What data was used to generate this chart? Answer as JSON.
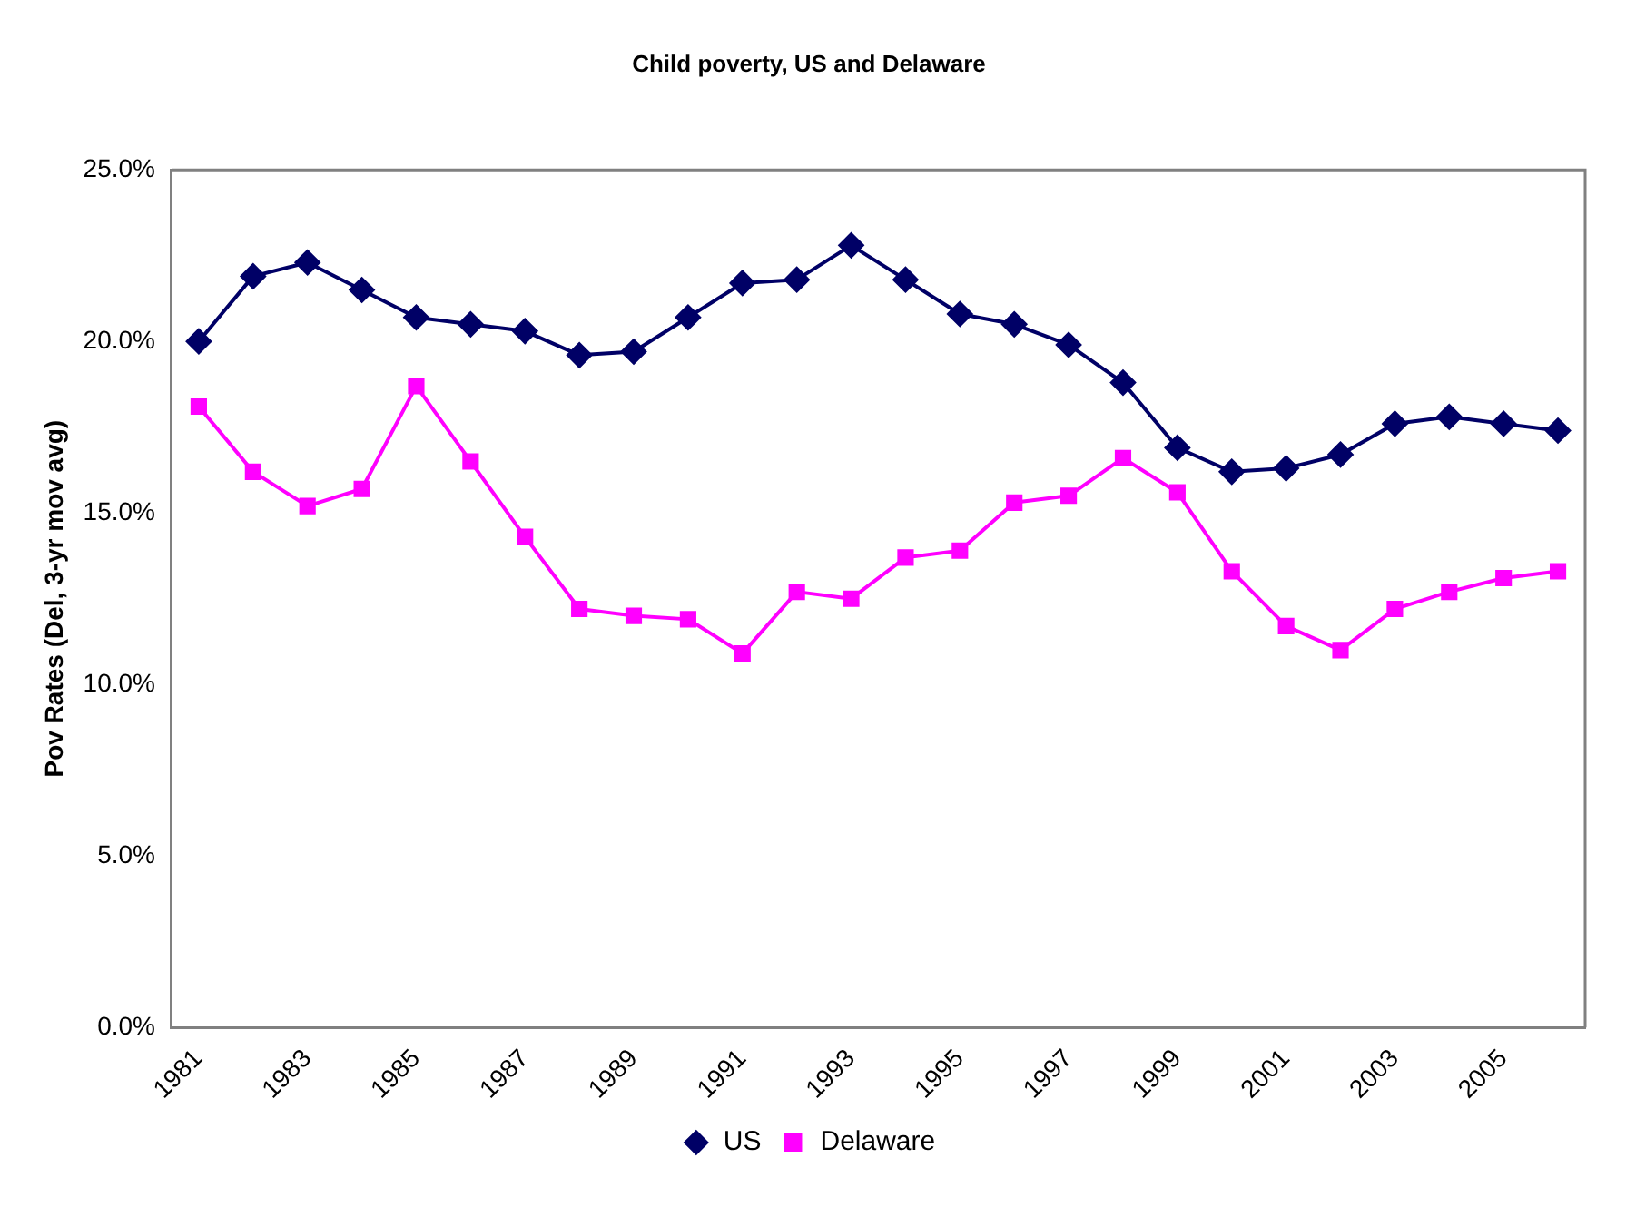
{
  "chart_data": {
    "type": "line",
    "title": "Child poverty, US and Delaware",
    "ylabel": "Pov Rates (Del, 3-yr mov avg)",
    "categories": [
      "1981",
      null,
      "1983",
      null,
      "1985",
      null,
      "1987",
      null,
      "1989",
      null,
      "1991",
      null,
      "1993",
      null,
      "1995",
      null,
      "1997",
      null,
      "1999",
      null,
      "2001",
      null,
      "2003",
      null,
      "2005",
      null
    ],
    "series": [
      {
        "name": "US",
        "color": "#000066",
        "marker": "diamond",
        "values": [
          20.0,
          21.9,
          22.3,
          21.5,
          20.7,
          20.5,
          20.3,
          19.6,
          19.7,
          20.7,
          21.7,
          21.8,
          22.8,
          21.8,
          20.8,
          20.5,
          19.9,
          18.8,
          16.9,
          16.2,
          16.3,
          16.7,
          17.6,
          17.8,
          17.6,
          17.4
        ]
      },
      {
        "name": "Delaware",
        "color": "#ff00ff",
        "marker": "square",
        "values": [
          18.1,
          16.2,
          15.2,
          15.7,
          18.7,
          16.5,
          14.3,
          12.2,
          12.0,
          11.9,
          10.9,
          12.7,
          12.5,
          13.7,
          13.9,
          15.3,
          15.5,
          16.6,
          15.6,
          13.3,
          11.7,
          11.0,
          12.2,
          12.7,
          13.1,
          13.3
        ]
      }
    ],
    "ylim": [
      0,
      25
    ],
    "yticks": [
      {
        "value": 0,
        "label": "0.0%"
      },
      {
        "value": 5,
        "label": "5.0%"
      },
      {
        "value": 10,
        "label": "10.0%"
      },
      {
        "value": 15,
        "label": "15.0%"
      },
      {
        "value": 20,
        "label": "20.0%"
      },
      {
        "value": 25,
        "label": "25.0%"
      }
    ],
    "grid": false,
    "legend": "bottom",
    "line_style": "solid"
  }
}
